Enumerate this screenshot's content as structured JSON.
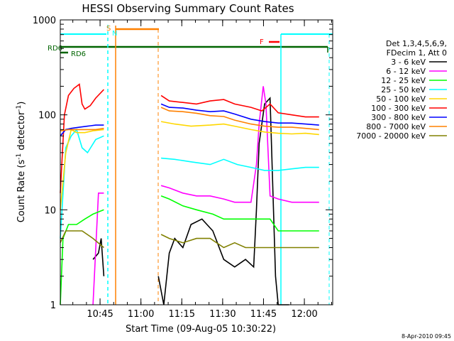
{
  "chart_data": {
    "type": "line",
    "title": "HESSI Observing Summary Count Rates",
    "xlabel": "Start Time (09-Aug-05 10:30:22)",
    "ylabel_main": "Count Rate (s",
    "ylabel_sup1": "-1",
    "ylabel_mid": " detector",
    "ylabel_sup2": "-1",
    "ylabel_end": ")",
    "yscale": "log",
    "ylim": [
      1,
      1000
    ],
    "xlim_minutes": [
      0,
      100
    ],
    "x_ticks": [
      {
        "label": "10:45",
        "min": 14.6
      },
      {
        "label": "11:00",
        "min": 29.6
      },
      {
        "label": "11:15",
        "min": 44.6
      },
      {
        "label": "11:30",
        "min": 59.6
      },
      {
        "label": "11:45",
        "min": 74.6
      },
      {
        "label": "12:00",
        "min": 89.6
      }
    ],
    "y_ticks": [
      {
        "label": "1",
        "v": 1
      },
      {
        "label": "10",
        "v": 10
      },
      {
        "label": "100",
        "v": 100
      },
      {
        "label": "1000",
        "v": 1000
      }
    ],
    "legend_header": [
      "Det 1,3,4,5,6,9,",
      "FDecim 1, Att 0"
    ],
    "series": [
      {
        "name": "3 - 6 keV",
        "color": "#000000",
        "points": [
          [
            12,
            3
          ],
          [
            14,
            3.5
          ],
          [
            15,
            5
          ],
          [
            16,
            2
          ],
          [
            36,
            2
          ],
          [
            38,
            1
          ],
          [
            40,
            3.5
          ],
          [
            42,
            5
          ],
          [
            45,
            4
          ],
          [
            48,
            7
          ],
          [
            52,
            8
          ],
          [
            56,
            6
          ],
          [
            60,
            3
          ],
          [
            64,
            2.5
          ],
          [
            68,
            3
          ],
          [
            71,
            2.5
          ],
          [
            72,
            10
          ],
          [
            73,
            50
          ],
          [
            75,
            130
          ],
          [
            77,
            150
          ],
          [
            79,
            2
          ],
          [
            80,
            1
          ],
          [
            84,
            1
          ]
        ]
      },
      {
        "name": "6 - 12 keV",
        "color": "#ff00ff",
        "points": [
          [
            12,
            1
          ],
          [
            14,
            15
          ],
          [
            16,
            15
          ],
          [
            37,
            18
          ],
          [
            40,
            17
          ],
          [
            45,
            15
          ],
          [
            50,
            14
          ],
          [
            55,
            14
          ],
          [
            60,
            13
          ],
          [
            64,
            12
          ],
          [
            70,
            12
          ],
          [
            72,
            30
          ],
          [
            73,
            80
          ],
          [
            74.5,
            200
          ],
          [
            75.5,
            130
          ],
          [
            77,
            14
          ],
          [
            80,
            13
          ],
          [
            85,
            12
          ],
          [
            95,
            12
          ]
        ]
      },
      {
        "name": "12 - 25 keV",
        "color": "#00ff00",
        "points": [
          [
            0,
            1
          ],
          [
            1,
            5
          ],
          [
            3,
            7
          ],
          [
            6,
            7
          ],
          [
            9,
            8
          ],
          [
            12,
            9
          ],
          [
            16,
            10
          ],
          [
            37,
            14
          ],
          [
            40,
            13
          ],
          [
            45,
            11
          ],
          [
            50,
            10
          ],
          [
            56,
            9
          ],
          [
            60,
            8
          ],
          [
            64,
            8
          ],
          [
            70,
            8
          ],
          [
            74,
            8
          ],
          [
            77,
            8
          ],
          [
            80,
            6
          ],
          [
            85,
            6
          ],
          [
            90,
            6
          ],
          [
            95,
            6
          ]
        ]
      },
      {
        "name": "25 - 50 keV",
        "color": "#00ffff",
        "points": [
          [
            0,
            5
          ],
          [
            2,
            45
          ],
          [
            4,
            60
          ],
          [
            6,
            70
          ],
          [
            8,
            45
          ],
          [
            10,
            40
          ],
          [
            13,
            55
          ],
          [
            16,
            60
          ],
          [
            37,
            35
          ],
          [
            42,
            34
          ],
          [
            48,
            32
          ],
          [
            55,
            30
          ],
          [
            60,
            34
          ],
          [
            65,
            30
          ],
          [
            70,
            28
          ],
          [
            75,
            26
          ],
          [
            80,
            26
          ],
          [
            85,
            27
          ],
          [
            90,
            28
          ],
          [
            95,
            28
          ]
        ]
      },
      {
        "name": "50 - 100 keV",
        "color": "#ffd700",
        "points": [
          [
            0,
            10
          ],
          [
            2,
            40
          ],
          [
            4,
            70
          ],
          [
            6,
            65
          ],
          [
            9,
            65
          ],
          [
            12,
            68
          ],
          [
            16,
            70
          ],
          [
            37,
            85
          ],
          [
            42,
            80
          ],
          [
            48,
            76
          ],
          [
            55,
            78
          ],
          [
            60,
            80
          ],
          [
            64,
            76
          ],
          [
            70,
            70
          ],
          [
            75,
            66
          ],
          [
            80,
            64
          ],
          [
            85,
            63
          ],
          [
            90,
            64
          ],
          [
            95,
            62
          ]
        ]
      },
      {
        "name": "100 - 300 keV",
        "color": "#ff0000",
        "points": [
          [
            0,
            15
          ],
          [
            1.5,
            100
          ],
          [
            3,
            160
          ],
          [
            5,
            190
          ],
          [
            7,
            210
          ],
          [
            8,
            130
          ],
          [
            9,
            115
          ],
          [
            11,
            125
          ],
          [
            13,
            150
          ],
          [
            16,
            185
          ],
          [
            37,
            160
          ],
          [
            40,
            140
          ],
          [
            45,
            135
          ],
          [
            50,
            130
          ],
          [
            55,
            140
          ],
          [
            60,
            145
          ],
          [
            64,
            130
          ],
          [
            70,
            120
          ],
          [
            74,
            110
          ],
          [
            77,
            130
          ],
          [
            80,
            105
          ],
          [
            85,
            100
          ],
          [
            90,
            95
          ],
          [
            95,
            95
          ]
        ]
      },
      {
        "name": "300 - 800 keV",
        "color": "#0000ff",
        "points": [
          [
            0,
            60
          ],
          [
            2,
            70
          ],
          [
            4,
            72
          ],
          [
            7,
            74
          ],
          [
            10,
            76
          ],
          [
            13,
            78
          ],
          [
            16,
            78
          ],
          [
            37,
            130
          ],
          [
            40,
            120
          ],
          [
            45,
            118
          ],
          [
            50,
            112
          ],
          [
            55,
            108
          ],
          [
            60,
            110
          ],
          [
            64,
            102
          ],
          [
            70,
            90
          ],
          [
            75,
            85
          ],
          [
            80,
            82
          ],
          [
            85,
            82
          ],
          [
            90,
            80
          ],
          [
            95,
            78
          ]
        ]
      },
      {
        "name": "800 - 7000 keV",
        "color": "#ff8000",
        "points": [
          [
            0,
            68
          ],
          [
            3,
            70
          ],
          [
            6,
            70
          ],
          [
            10,
            70
          ],
          [
            13,
            70
          ],
          [
            16,
            72
          ],
          [
            37,
            120
          ],
          [
            40,
            110
          ],
          [
            45,
            108
          ],
          [
            50,
            104
          ],
          [
            55,
            98
          ],
          [
            60,
            96
          ],
          [
            64,
            88
          ],
          [
            70,
            80
          ],
          [
            75,
            76
          ],
          [
            80,
            74
          ],
          [
            85,
            74
          ],
          [
            90,
            72
          ],
          [
            95,
            70
          ]
        ]
      },
      {
        "name": "7000 - 20000 keV",
        "color": "#808000",
        "points": [
          [
            0,
            4.5
          ],
          [
            2,
            6
          ],
          [
            5,
            6
          ],
          [
            8,
            6
          ],
          [
            12,
            5
          ],
          [
            16,
            4
          ],
          [
            37,
            5.5
          ],
          [
            40,
            5
          ],
          [
            45,
            4.5
          ],
          [
            50,
            5
          ],
          [
            55,
            5
          ],
          [
            60,
            4
          ],
          [
            64,
            4.5
          ],
          [
            68,
            4
          ],
          [
            72,
            4
          ],
          [
            75,
            4
          ],
          [
            80,
            4
          ],
          [
            85,
            4
          ],
          [
            90,
            4
          ],
          [
            95,
            4
          ]
        ]
      }
    ],
    "annotations": [
      {
        "text": "RD6",
        "color": "#006400"
      },
      {
        "text": "RD6",
        "color": "#006400"
      },
      {
        "text": "S",
        "color": "#ff8000"
      },
      {
        "text": "N",
        "color": "#00ffff"
      },
      {
        "text": "F",
        "color": "#ff0000"
      }
    ]
  },
  "footer_date": "8-Apr-2010 09:45"
}
